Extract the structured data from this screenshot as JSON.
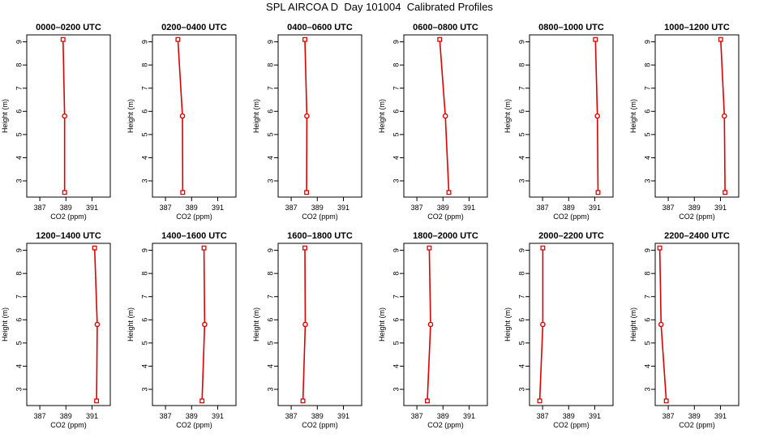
{
  "page": {
    "title": "SPL AIRCOA D  Day 101004  Calibrated Profiles"
  },
  "colors": {
    "series": "#dd0000",
    "axis": "#000000"
  },
  "chart_data": [
    {
      "type": "line",
      "title": "0000–0200 UTC",
      "xlabel": "CO2 (ppm)",
      "ylabel": "Height (m)",
      "xlim": [
        386,
        392.4
      ],
      "ylim": [
        2.3,
        9.3
      ],
      "x_ticks": [
        387,
        389,
        391
      ],
      "y_ticks": [
        3,
        4,
        5,
        6,
        7,
        8,
        9
      ],
      "grid": false,
      "series": [
        {
          "x": [
            388.78,
            388.9,
            388.9
          ],
          "y": [
            9.1,
            5.8,
            2.5
          ]
        }
      ]
    },
    {
      "type": "line",
      "title": "0200–0400 UTC",
      "xlabel": "CO2 (ppm)",
      "ylabel": "Height (m)",
      "xlim": [
        386,
        392.4
      ],
      "ylim": [
        2.3,
        9.3
      ],
      "x_ticks": [
        387,
        389,
        391
      ],
      "y_ticks": [
        3,
        4,
        5,
        6,
        7,
        8,
        9
      ],
      "grid": false,
      "series": [
        {
          "x": [
            387.95,
            388.3,
            388.32
          ],
          "y": [
            9.1,
            5.8,
            2.5
          ]
        }
      ]
    },
    {
      "type": "line",
      "title": "0400–0600 UTC",
      "xlabel": "CO2 (ppm)",
      "ylabel": "Height (m)",
      "xlim": [
        386,
        392.4
      ],
      "ylim": [
        2.3,
        9.3
      ],
      "x_ticks": [
        387,
        389,
        391
      ],
      "y_ticks": [
        3,
        4,
        5,
        6,
        7,
        8,
        9
      ],
      "grid": false,
      "series": [
        {
          "x": [
            388.05,
            388.2,
            388.18
          ],
          "y": [
            9.1,
            5.8,
            2.5
          ]
        }
      ]
    },
    {
      "type": "line",
      "title": "0600–0800 UTC",
      "xlabel": "CO2 (ppm)",
      "ylabel": "Height (m)",
      "xlim": [
        386,
        392.4
      ],
      "ylim": [
        2.3,
        9.3
      ],
      "x_ticks": [
        387,
        389,
        391
      ],
      "y_ticks": [
        3,
        4,
        5,
        6,
        7,
        8,
        9
      ],
      "grid": false,
      "series": [
        {
          "x": [
            388.75,
            389.18,
            389.45
          ],
          "y": [
            9.1,
            5.8,
            2.5
          ]
        }
      ]
    },
    {
      "type": "line",
      "title": "0800–1000 UTC",
      "xlabel": "CO2 (ppm)",
      "ylabel": "Height (m)",
      "xlim": [
        386,
        392.4
      ],
      "ylim": [
        2.3,
        9.3
      ],
      "x_ticks": [
        387,
        389,
        391
      ],
      "y_ticks": [
        3,
        4,
        5,
        6,
        7,
        8,
        9
      ],
      "grid": false,
      "series": [
        {
          "x": [
            391.05,
            391.2,
            391.25
          ],
          "y": [
            9.1,
            5.8,
            2.5
          ]
        }
      ]
    },
    {
      "type": "line",
      "title": "1000–1200 UTC",
      "xlabel": "CO2 (ppm)",
      "ylabel": "Height (m)",
      "xlim": [
        386,
        392.4
      ],
      "ylim": [
        2.3,
        9.3
      ],
      "x_ticks": [
        387,
        389,
        391
      ],
      "y_ticks": [
        3,
        4,
        5,
        6,
        7,
        8,
        9
      ],
      "grid": false,
      "series": [
        {
          "x": [
            391.02,
            391.3,
            391.35
          ],
          "y": [
            9.1,
            5.8,
            2.5
          ]
        }
      ]
    },
    {
      "type": "line",
      "title": "1200–1400 UTC",
      "xlabel": "CO2 (ppm)",
      "ylabel": "Height (m)",
      "xlim": [
        386,
        392.4
      ],
      "ylim": [
        2.3,
        9.3
      ],
      "x_ticks": [
        387,
        389,
        391
      ],
      "y_ticks": [
        3,
        4,
        5,
        6,
        7,
        8,
        9
      ],
      "grid": false,
      "series": [
        {
          "x": [
            391.2,
            391.4,
            391.35
          ],
          "y": [
            9.1,
            5.8,
            2.5
          ]
        }
      ]
    },
    {
      "type": "line",
      "title": "1400–1600 UTC",
      "xlabel": "CO2 (ppm)",
      "ylabel": "Height (m)",
      "xlim": [
        386,
        392.4
      ],
      "ylim": [
        2.3,
        9.3
      ],
      "x_ticks": [
        387,
        389,
        391
      ],
      "y_ticks": [
        3,
        4,
        5,
        6,
        7,
        8,
        9
      ],
      "grid": false,
      "series": [
        {
          "x": [
            389.95,
            390.0,
            389.8
          ],
          "y": [
            9.1,
            5.8,
            2.5
          ]
        }
      ]
    },
    {
      "type": "line",
      "title": "1600–1800 UTC",
      "xlabel": "CO2 (ppm)",
      "ylabel": "Height (m)",
      "xlim": [
        386,
        392.4
      ],
      "ylim": [
        2.3,
        9.3
      ],
      "x_ticks": [
        387,
        389,
        391
      ],
      "y_ticks": [
        3,
        4,
        5,
        6,
        7,
        8,
        9
      ],
      "grid": false,
      "series": [
        {
          "x": [
            388.05,
            388.08,
            387.9
          ],
          "y": [
            9.1,
            5.8,
            2.5
          ]
        }
      ]
    },
    {
      "type": "line",
      "title": "1800–2000 UTC",
      "xlabel": "CO2 (ppm)",
      "ylabel": "Height (m)",
      "xlim": [
        386,
        392.4
      ],
      "ylim": [
        2.3,
        9.3
      ],
      "x_ticks": [
        387,
        389,
        391
      ],
      "y_ticks": [
        3,
        4,
        5,
        6,
        7,
        8,
        9
      ],
      "grid": false,
      "series": [
        {
          "x": [
            387.95,
            388.05,
            387.8
          ],
          "y": [
            9.1,
            5.8,
            2.5
          ]
        }
      ]
    },
    {
      "type": "line",
      "title": "2000–2200 UTC",
      "xlabel": "CO2 (ppm)",
      "ylabel": "Height (m)",
      "xlim": [
        386,
        392.4
      ],
      "ylim": [
        2.3,
        9.3
      ],
      "x_ticks": [
        387,
        389,
        391
      ],
      "y_ticks": [
        3,
        4,
        5,
        6,
        7,
        8,
        9
      ],
      "grid": false,
      "series": [
        {
          "x": [
            387.02,
            387.02,
            386.78
          ],
          "y": [
            9.1,
            5.8,
            2.5
          ]
        }
      ]
    },
    {
      "type": "line",
      "title": "2200–2400 UTC",
      "xlabel": "CO2 (ppm)",
      "ylabel": "Height (m)",
      "xlim": [
        386,
        392.4
      ],
      "ylim": [
        2.3,
        9.3
      ],
      "x_ticks": [
        387,
        389,
        391
      ],
      "y_ticks": [
        3,
        4,
        5,
        6,
        7,
        8,
        9
      ],
      "grid": false,
      "series": [
        {
          "x": [
            386.35,
            386.45,
            386.85
          ],
          "y": [
            9.1,
            5.8,
            2.5
          ]
        }
      ]
    }
  ]
}
